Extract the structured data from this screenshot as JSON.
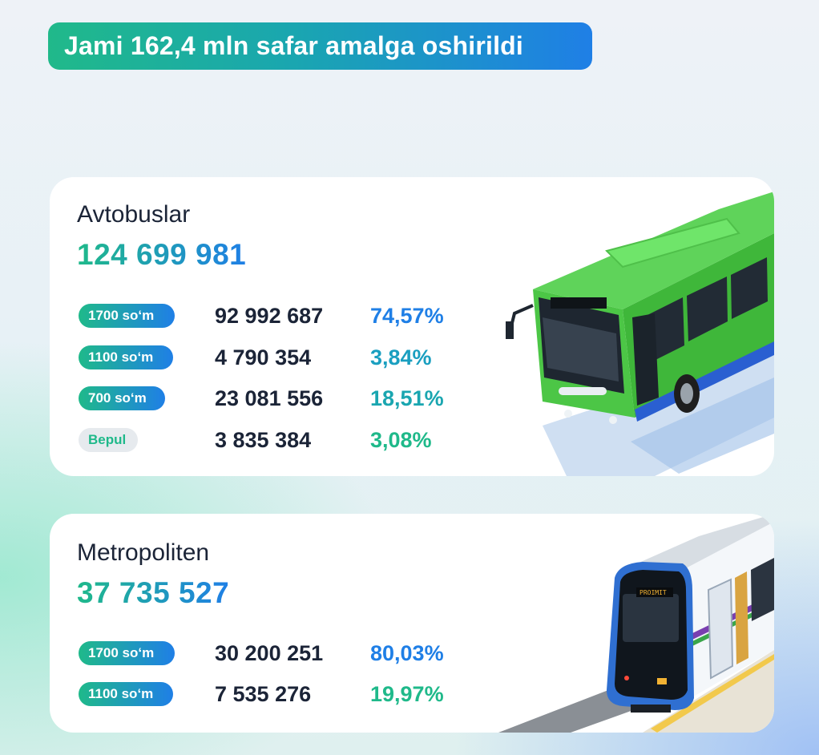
{
  "headline": "Jami 162,4 mln safar amalga oshirildi",
  "colors": {
    "green": "#1fb98a",
    "blue": "#1f7fe6",
    "text_dark": "#1b2437",
    "bus_body": "#52c84a"
  },
  "bus": {
    "title": "Avtobuslar",
    "total": "124 699 981",
    "rows": [
      {
        "tariff": "1700 so‘m",
        "count": "92 992 687",
        "percent": "74,57%"
      },
      {
        "tariff": "1100 so‘m",
        "count": "4 790 354",
        "percent": "3,84%"
      },
      {
        "tariff": "700 so‘m",
        "count": "23 081 556",
        "percent": "18,51%"
      },
      {
        "tariff": "Bepul",
        "count": "3 835 384",
        "percent": "3,08%"
      }
    ],
    "illustration": "green-city-bus"
  },
  "metro": {
    "title": "Metropoliten",
    "total": "37 735 527",
    "rows": [
      {
        "tariff": "1700 so‘m",
        "count": "30 200 251",
        "percent": "80,03%"
      },
      {
        "tariff": "1100 so‘m",
        "count": "7 535 276",
        "percent": "19,97%"
      }
    ],
    "illustration": "metro-train",
    "train_sign": "PROIMIT"
  }
}
